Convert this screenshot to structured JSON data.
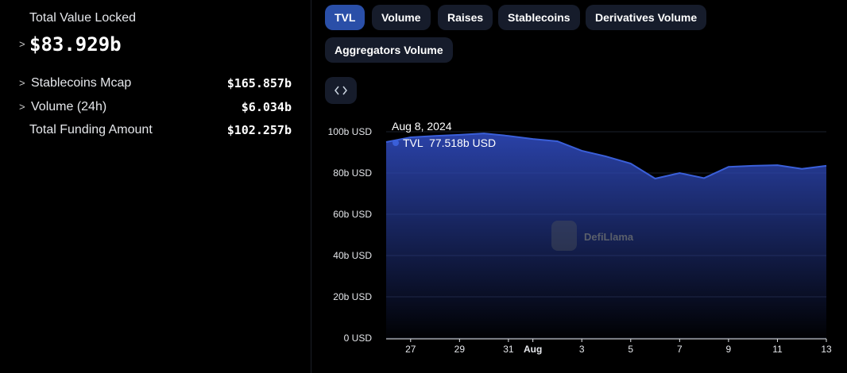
{
  "sidebar": {
    "title": "Total Value Locked",
    "total": "$83.929b",
    "rows": [
      {
        "label": "Stablecoins Mcap",
        "value": "$165.857b"
      },
      {
        "label": "Volume (24h)",
        "value": "$6.034b"
      },
      {
        "label": "Total Funding Amount",
        "value": "$102.257b"
      }
    ]
  },
  "tabs": [
    "TVL",
    "Volume",
    "Raises",
    "Stablecoins",
    "Derivatives Volume",
    "Aggregators Volume"
  ],
  "watermark": "DefiLlama",
  "tooltip": {
    "date": "Aug 8, 2024",
    "value": "77.518b USD"
  },
  "chart_data": {
    "type": "area",
    "categories": [
      null,
      "27",
      null,
      "29",
      null,
      "31",
      "Aug",
      null,
      "3",
      null,
      "5",
      null,
      "7",
      null,
      "9",
      null,
      "11",
      null,
      "13"
    ],
    "series": [
      {
        "name": "TVL",
        "color": "#3a5fd9",
        "values": [
          95,
          97.3,
          98,
          98.5,
          99.2,
          98,
          96.5,
          95.4,
          90.8,
          88,
          84.6,
          77.3,
          80,
          77.518,
          83,
          83.5,
          83.8,
          82,
          83.5
        ]
      }
    ],
    "ylim": [
      0,
      100
    ],
    "yticks": [
      {
        "value": 0,
        "label": "0 USD"
      },
      {
        "value": 20,
        "label": "20b USD"
      },
      {
        "value": 40,
        "label": "40b USD"
      },
      {
        "value": 60,
        "label": "60b USD"
      },
      {
        "value": 80,
        "label": "80b USD"
      },
      {
        "value": 100,
        "label": "100b USD"
      }
    ],
    "grid": true
  }
}
